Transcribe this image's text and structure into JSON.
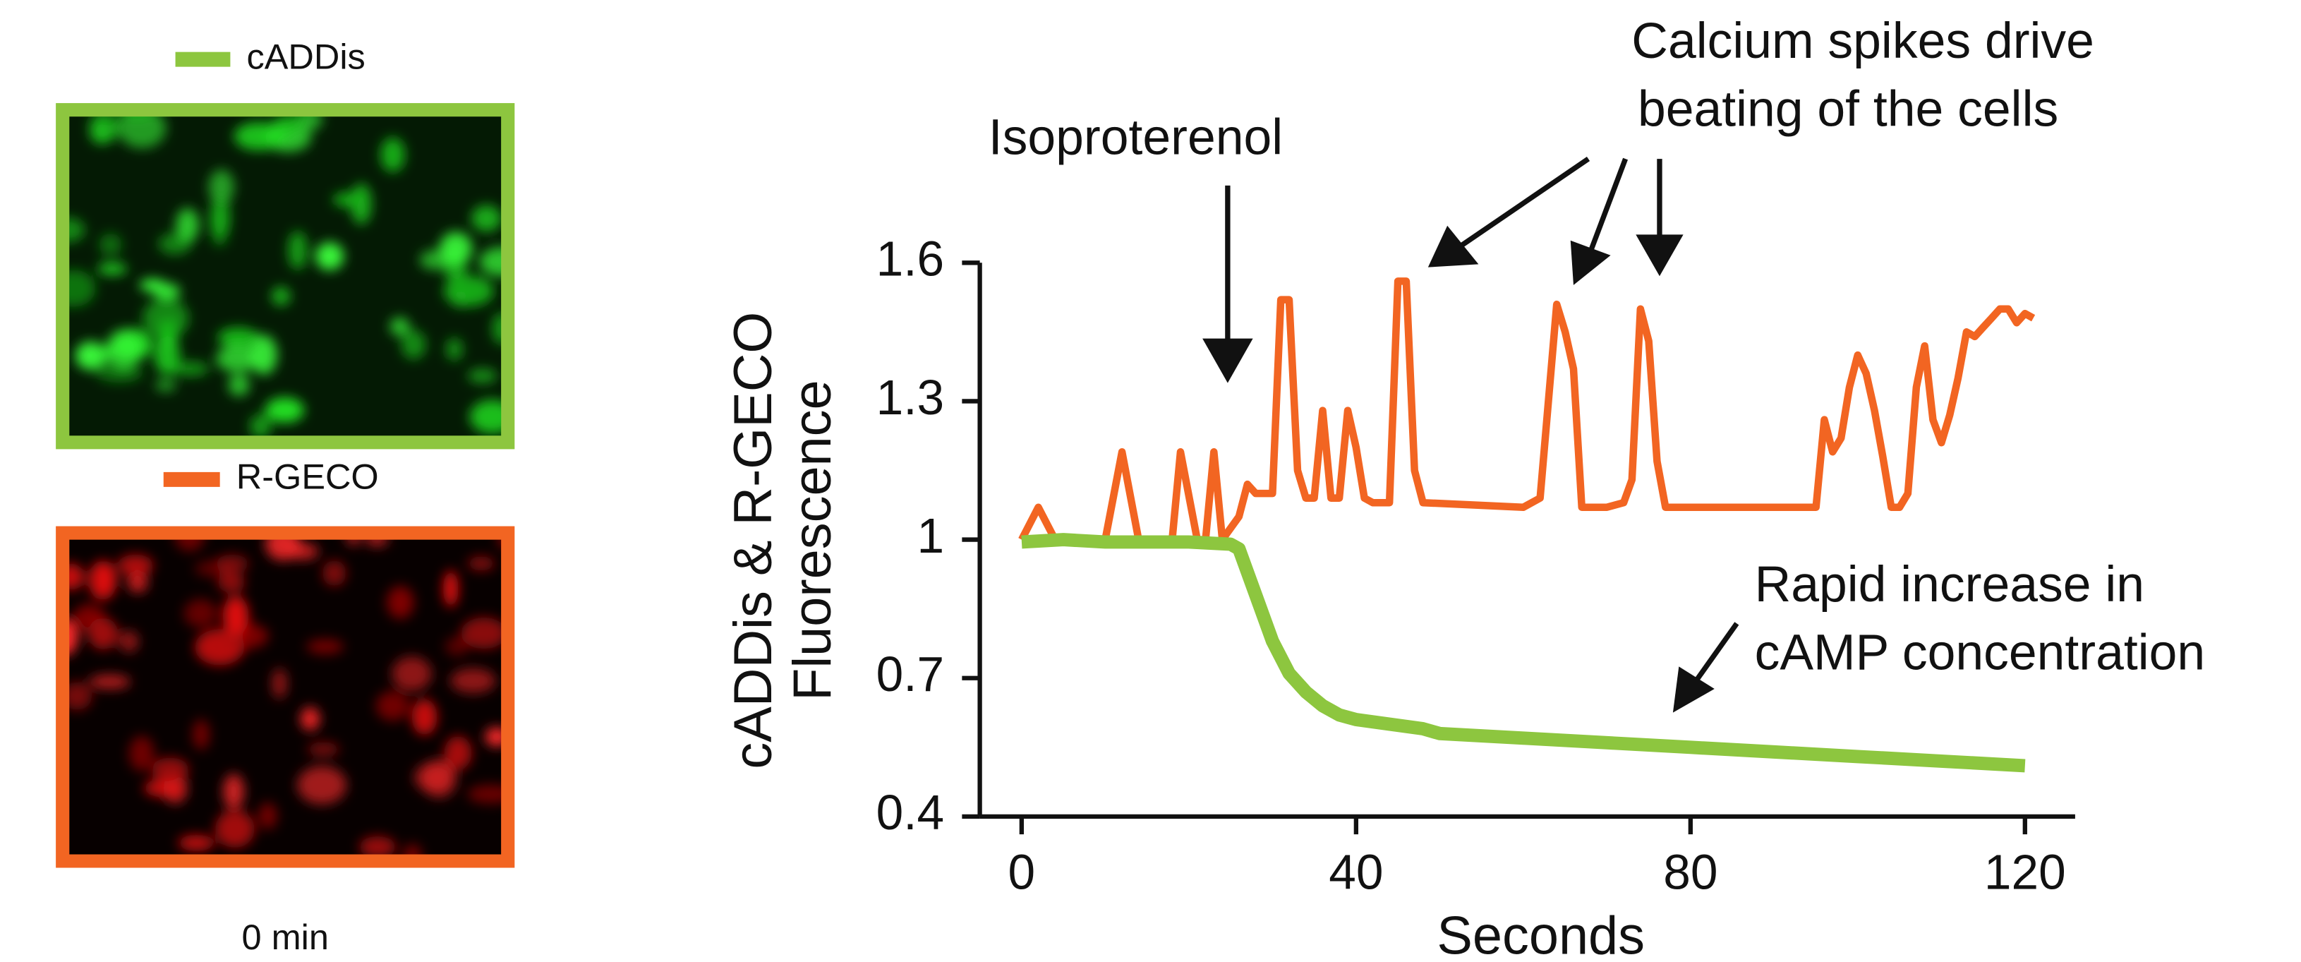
{
  "chart_data": {
    "type": "line",
    "x_label": "Seconds",
    "y_label": [
      "cADDis & R-GECO",
      "Fluorescence"
    ],
    "xlim": [
      -5,
      126
    ],
    "xticks": [
      0,
      40,
      80,
      120
    ],
    "ylim": [
      0.4,
      1.6
    ],
    "yticks": [
      0.4,
      0.7,
      1,
      1.3,
      1.6
    ],
    "series": [
      {
        "name": "cADDis",
        "color": "#8dc63f",
        "x": [
          0,
          5,
          10,
          15,
          20,
          25,
          26,
          28,
          30,
          32,
          34,
          36,
          38,
          40,
          44,
          48,
          50,
          60,
          70,
          80,
          90,
          100,
          110,
          120
        ],
        "values": [
          0.995,
          1.0,
          0.995,
          0.995,
          0.995,
          0.99,
          0.98,
          0.88,
          0.78,
          0.71,
          0.67,
          0.64,
          0.62,
          0.61,
          0.6,
          0.59,
          0.58,
          0.57,
          0.56,
          0.55,
          0.54,
          0.53,
          0.52,
          0.51
        ]
      },
      {
        "name": "R-GECO",
        "color": "#f26522",
        "x": [
          0,
          2,
          4,
          6,
          10,
          12,
          14,
          18,
          19,
          21,
          22,
          23,
          24,
          26,
          27,
          28,
          30,
          31,
          32,
          33,
          34,
          35,
          36,
          37,
          38,
          39,
          40,
          41,
          42,
          44,
          45,
          46,
          47,
          48,
          60,
          62,
          64,
          65,
          66,
          67,
          70,
          72,
          73,
          74,
          75,
          76,
          77,
          95,
          96,
          97,
          98,
          99,
          100,
          101,
          102,
          103,
          104,
          105,
          106,
          107,
          108,
          109,
          110,
          111,
          112,
          113,
          114,
          115,
          116,
          117,
          118,
          119,
          120,
          121
        ],
        "values": [
          1.0,
          1.07,
          1.0,
          1.0,
          1.0,
          1.19,
          1.0,
          1.0,
          1.19,
          1.0,
          1.0,
          1.19,
          1.0,
          1.05,
          1.12,
          1.1,
          1.1,
          1.52,
          1.52,
          1.15,
          1.09,
          1.09,
          1.28,
          1.09,
          1.09,
          1.28,
          1.2,
          1.09,
          1.08,
          1.08,
          1.56,
          1.56,
          1.15,
          1.08,
          1.07,
          1.09,
          1.51,
          1.45,
          1.37,
          1.07,
          1.07,
          1.08,
          1.13,
          1.5,
          1.43,
          1.17,
          1.07,
          1.07,
          1.26,
          1.19,
          1.22,
          1.33,
          1.4,
          1.36,
          1.28,
          1.18,
          1.07,
          1.07,
          1.1,
          1.33,
          1.42,
          1.26,
          1.21,
          1.27,
          1.35,
          1.45,
          1.44,
          1.46,
          1.48,
          1.5,
          1.5,
          1.47,
          1.49,
          1.48
        ]
      }
    ],
    "annotations": [
      "Isoproterenol",
      [
        "Calcium spikes drive",
        "beating of the cells"
      ],
      [
        "Rapid increase in",
        "cAMP concentration"
      ]
    ],
    "image_caption": "0 min"
  }
}
